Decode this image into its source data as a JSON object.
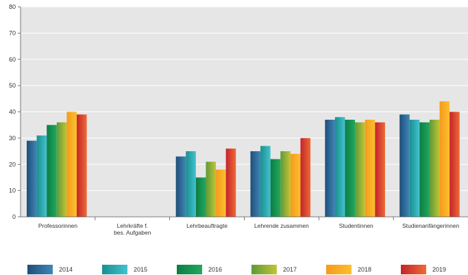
{
  "chart_data": {
    "type": "bar",
    "categories": [
      [
        "Professorinnen"
      ],
      [
        "Lehrkräfte f.",
        "bes. Aufgaben"
      ],
      [
        "Lehrbeauftragte"
      ],
      [
        "Lehrende zusammen"
      ],
      [
        "Studentinnen"
      ],
      [
        "Studienanfängerinnen"
      ]
    ],
    "series": [
      {
        "name": "2014",
        "color_dark": "#1f4e79",
        "color_light": "#3f86b5",
        "values": [
          29,
          null,
          23,
          25,
          37,
          39
        ]
      },
      {
        "name": "2015",
        "color_dark": "#1a8f8f",
        "color_light": "#43c2cf",
        "values": [
          31,
          null,
          25,
          27,
          38,
          37
        ]
      },
      {
        "name": "2016",
        "color_dark": "#0d7d45",
        "color_light": "#22a85c",
        "values": [
          35,
          null,
          15,
          22,
          37,
          36
        ]
      },
      {
        "name": "2017",
        "color_dark": "#5d9a3a",
        "color_light": "#c2c434",
        "values": [
          36,
          null,
          21,
          25,
          36,
          37
        ]
      },
      {
        "name": "2018",
        "color_dark": "#f59a1d",
        "color_light": "#fbc02d",
        "values": [
          40,
          null,
          18,
          24,
          37,
          44
        ]
      },
      {
        "name": "2019",
        "color_dark": "#c4232b",
        "color_light": "#ee6a34",
        "values": [
          39,
          null,
          26,
          30,
          36,
          40
        ]
      }
    ],
    "yticks": [
      0,
      10,
      20,
      30,
      40,
      50,
      60,
      70,
      80
    ],
    "ylim": [
      0,
      80
    ],
    "grid": true,
    "legend": "bottom",
    "background": "#e6e6e6"
  }
}
